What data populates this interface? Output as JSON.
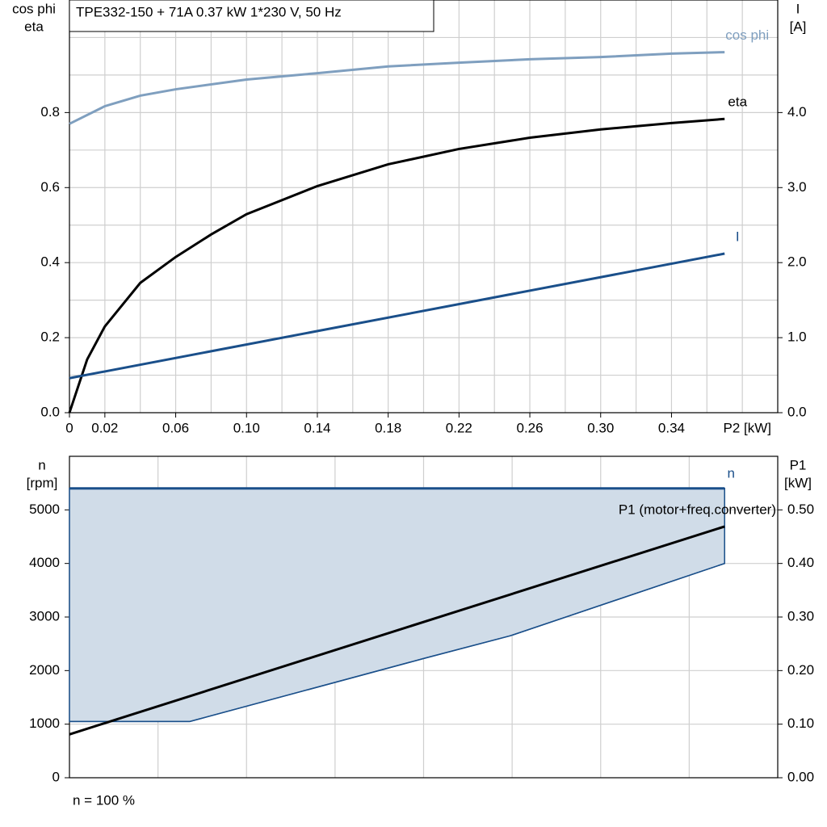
{
  "chart_data": [
    {
      "type": "line",
      "title": "TPE332-150 + 71A   0.37 kW   1*230 V, 50 Hz",
      "ylabel": [
        "cos phi",
        "eta"
      ],
      "y2label": [
        "I",
        "[A]"
      ],
      "xlabel": "P2 [kW]",
      "xlim": [
        0,
        0.4
      ],
      "ylim": [
        0,
        1.1
      ],
      "y2lim": [
        0,
        5.5
      ],
      "xticks": [
        0,
        0.02,
        0.06,
        {
          "value": 0.1,
          "label": "0.10"
        },
        0.14,
        0.18,
        0.22,
        0.26,
        {
          "value": 0.3,
          "label": "0.30"
        },
        0.34
      ],
      "xgrid": [
        0.02,
        0.04,
        0.06,
        0.08,
        0.1,
        0.12,
        0.14,
        0.16,
        0.18,
        0.2,
        0.22,
        0.24,
        0.26,
        0.28,
        0.3,
        0.32,
        0.34,
        0.36,
        0.38
      ],
      "yticks": [
        {
          "value": 0,
          "label": "0.0"
        },
        0.2,
        0.4,
        0.6,
        0.8
      ],
      "ygrid": [
        0.1,
        0.2,
        0.3,
        0.4,
        0.5,
        0.6,
        0.7,
        0.8,
        0.9,
        1.0
      ],
      "y2ticks": [
        {
          "value": 0,
          "label": "0.0"
        },
        {
          "value": 1,
          "label": "1.0"
        },
        {
          "value": 2,
          "label": "2.0"
        },
        {
          "value": 3,
          "label": "3.0"
        },
        {
          "value": 4,
          "label": "4.0"
        }
      ],
      "series": [
        {
          "name": "cos phi",
          "color": "#7f9fbf",
          "x": [
            0,
            0.02,
            0.04,
            0.06,
            0.1,
            0.14,
            0.18,
            0.22,
            0.26,
            0.3,
            0.34,
            0.37
          ],
          "values": [
            0.77,
            0.817,
            0.845,
            0.862,
            0.888,
            0.905,
            0.923,
            0.933,
            0.942,
            0.948,
            0.957,
            0.961
          ]
        },
        {
          "name": "eta",
          "color": "#000000",
          "x": [
            0,
            0.01,
            0.02,
            0.04,
            0.06,
            0.08,
            0.1,
            0.14,
            0.18,
            0.22,
            0.26,
            0.3,
            0.34,
            0.37
          ],
          "values": [
            0,
            0.142,
            0.23,
            0.346,
            0.415,
            0.475,
            0.529,
            0.604,
            0.662,
            0.703,
            0.733,
            0.755,
            0.772,
            0.783
          ]
        },
        {
          "name": "I",
          "color": "#1a4f8a",
          "axis": "y2",
          "x": [
            0,
            0.37
          ],
          "values": [
            0.46,
            2.12
          ]
        }
      ]
    },
    {
      "type": "area",
      "ylabel": [
        "n",
        "[rpm]"
      ],
      "y2label": [
        "P1",
        "[kW]"
      ],
      "note": "n = 100 %",
      "xlim": [
        0,
        0.4
      ],
      "ylim": [
        0,
        6000
      ],
      "y2lim": [
        0,
        0.6
      ],
      "xgrid": [
        0.05,
        0.1,
        0.15,
        0.2,
        0.25,
        0.3,
        0.35
      ],
      "yticks": [
        0,
        1000,
        2000,
        3000,
        4000,
        5000
      ],
      "ygrid": [
        1000,
        2000,
        3000,
        4000,
        5000
      ],
      "y2ticks": [
        {
          "value": 0,
          "label": "0.00"
        },
        {
          "value": 0.1,
          "label": "0.10"
        },
        {
          "value": 0.2,
          "label": "0.20"
        },
        {
          "value": 0.3,
          "label": "0.30"
        },
        {
          "value": 0.4,
          "label": "0.40"
        },
        {
          "value": 0.5,
          "label": "0.50"
        }
      ],
      "series": [
        {
          "name": "n",
          "color": "#1a4f8a",
          "fill": "#d0dce8",
          "x": [
            0,
            0.068,
            0.2,
            0.249,
            0.37
          ],
          "values": [
            5400,
            5400,
            5400,
            5400,
            5400
          ],
          "lower": [
            1050,
            1050,
            2225,
            2650,
            4000
          ]
        },
        {
          "name": "P1 (motor+freq.converter)",
          "color": "#000000",
          "axis": "y2",
          "x": [
            0,
            0.37
          ],
          "values": [
            0.081,
            0.469
          ]
        }
      ]
    }
  ]
}
